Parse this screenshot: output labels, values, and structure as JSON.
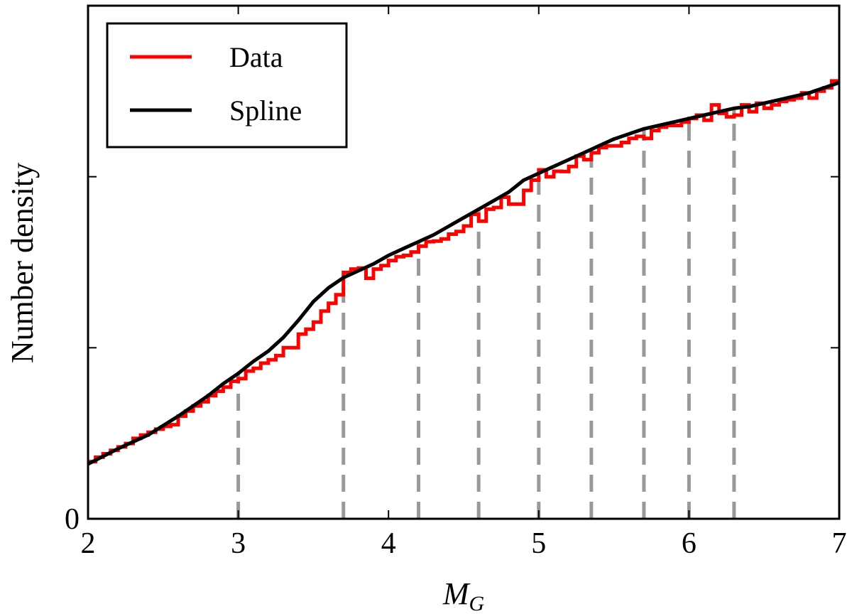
{
  "chart_data": {
    "type": "line",
    "title": "",
    "xlabel_main": "M",
    "xlabel_sub": "G",
    "ylabel": "Number density",
    "xlim": [
      2,
      7
    ],
    "ylim": [
      0,
      1.5
    ],
    "xticks": [
      2,
      3,
      4,
      5,
      6,
      7
    ],
    "xtick_labels": [
      "2",
      "3",
      "4",
      "5",
      "6",
      "7"
    ],
    "yticks": [
      0,
      0.5,
      1.0
    ],
    "ytick_labels": [
      "0",
      "",
      ""
    ],
    "legend": {
      "placement": "top-left",
      "entries": [
        {
          "label": "Data",
          "color": "#ff0000"
        },
        {
          "label": "Spline",
          "color": "#000000"
        }
      ]
    },
    "knots": [
      3.0,
      3.7,
      4.2,
      4.6,
      5.0,
      5.35,
      5.7,
      6.0,
      6.3
    ],
    "knot_color": "#999999",
    "series": [
      {
        "name": "Data",
        "style": "step",
        "color": "#ff0000",
        "bin_edges": [
          2.0,
          2.05,
          2.1,
          2.15,
          2.2,
          2.25,
          2.3,
          2.35,
          2.4,
          2.45,
          2.5,
          2.55,
          2.6,
          2.65,
          2.7,
          2.75,
          2.8,
          2.85,
          2.9,
          2.95,
          3.0,
          3.05,
          3.1,
          3.15,
          3.2,
          3.25,
          3.3,
          3.35,
          3.4,
          3.45,
          3.5,
          3.55,
          3.6,
          3.65,
          3.7,
          3.75,
          3.8,
          3.85,
          3.9,
          3.95,
          4.0,
          4.05,
          4.1,
          4.15,
          4.2,
          4.25,
          4.3,
          4.35,
          4.4,
          4.45,
          4.5,
          4.55,
          4.6,
          4.65,
          4.7,
          4.75,
          4.8,
          4.85,
          4.9,
          4.95,
          5.0,
          5.05,
          5.1,
          5.15,
          5.2,
          5.25,
          5.3,
          5.35,
          5.4,
          5.45,
          5.5,
          5.55,
          5.6,
          5.65,
          5.7,
          5.75,
          5.8,
          5.85,
          5.9,
          5.95,
          6.0,
          6.05,
          6.1,
          6.15,
          6.2,
          6.25,
          6.3,
          6.35,
          6.4,
          6.45,
          6.5,
          6.55,
          6.6,
          6.65,
          6.7,
          6.75,
          6.8,
          6.85,
          6.9,
          6.95,
          7.0
        ],
        "values": [
          0.167,
          0.18,
          0.19,
          0.2,
          0.21,
          0.22,
          0.235,
          0.245,
          0.253,
          0.262,
          0.27,
          0.275,
          0.3,
          0.315,
          0.33,
          0.342,
          0.36,
          0.373,
          0.385,
          0.402,
          0.41,
          0.432,
          0.44,
          0.455,
          0.465,
          0.477,
          0.5,
          0.5,
          0.54,
          0.554,
          0.575,
          0.607,
          0.63,
          0.655,
          0.72,
          0.73,
          0.733,
          0.703,
          0.73,
          0.74,
          0.755,
          0.766,
          0.77,
          0.78,
          0.797,
          0.81,
          0.812,
          0.818,
          0.832,
          0.84,
          0.856,
          0.89,
          0.87,
          0.905,
          0.91,
          0.94,
          0.92,
          0.92,
          0.96,
          0.99,
          1.02,
          1.0,
          1.016,
          1.015,
          1.03,
          1.06,
          1.05,
          1.07,
          1.085,
          1.09,
          1.09,
          1.1,
          1.112,
          1.118,
          1.112,
          1.135,
          1.145,
          1.15,
          1.15,
          1.16,
          1.17,
          1.18,
          1.165,
          1.21,
          1.185,
          1.175,
          1.18,
          1.21,
          1.19,
          1.215,
          1.2,
          1.21,
          1.22,
          1.225,
          1.23,
          1.245,
          1.23,
          1.25,
          1.26,
          1.28
        ]
      },
      {
        "name": "Spline",
        "style": "line",
        "color": "#000000",
        "x": [
          2.0,
          2.2,
          2.4,
          2.6,
          2.8,
          2.9,
          3.0,
          3.1,
          3.2,
          3.3,
          3.4,
          3.5,
          3.6,
          3.65,
          3.7,
          3.75,
          3.8,
          3.9,
          4.0,
          4.1,
          4.2,
          4.3,
          4.4,
          4.5,
          4.6,
          4.7,
          4.8,
          4.9,
          5.0,
          5.1,
          5.2,
          5.3,
          5.35,
          5.4,
          5.5,
          5.6,
          5.7,
          5.8,
          5.9,
          6.0,
          6.1,
          6.2,
          6.3,
          6.4,
          6.5,
          6.6,
          6.7,
          6.8,
          6.9,
          7.0
        ],
        "y": [
          0.16,
          0.205,
          0.245,
          0.3,
          0.36,
          0.395,
          0.425,
          0.46,
          0.49,
          0.53,
          0.58,
          0.635,
          0.675,
          0.69,
          0.705,
          0.715,
          0.725,
          0.745,
          0.77,
          0.79,
          0.81,
          0.83,
          0.855,
          0.88,
          0.905,
          0.93,
          0.955,
          0.99,
          1.01,
          1.03,
          1.05,
          1.07,
          1.08,
          1.09,
          1.11,
          1.125,
          1.14,
          1.15,
          1.16,
          1.17,
          1.18,
          1.19,
          1.2,
          1.205,
          1.215,
          1.225,
          1.235,
          1.245,
          1.26,
          1.275
        ]
      }
    ]
  }
}
